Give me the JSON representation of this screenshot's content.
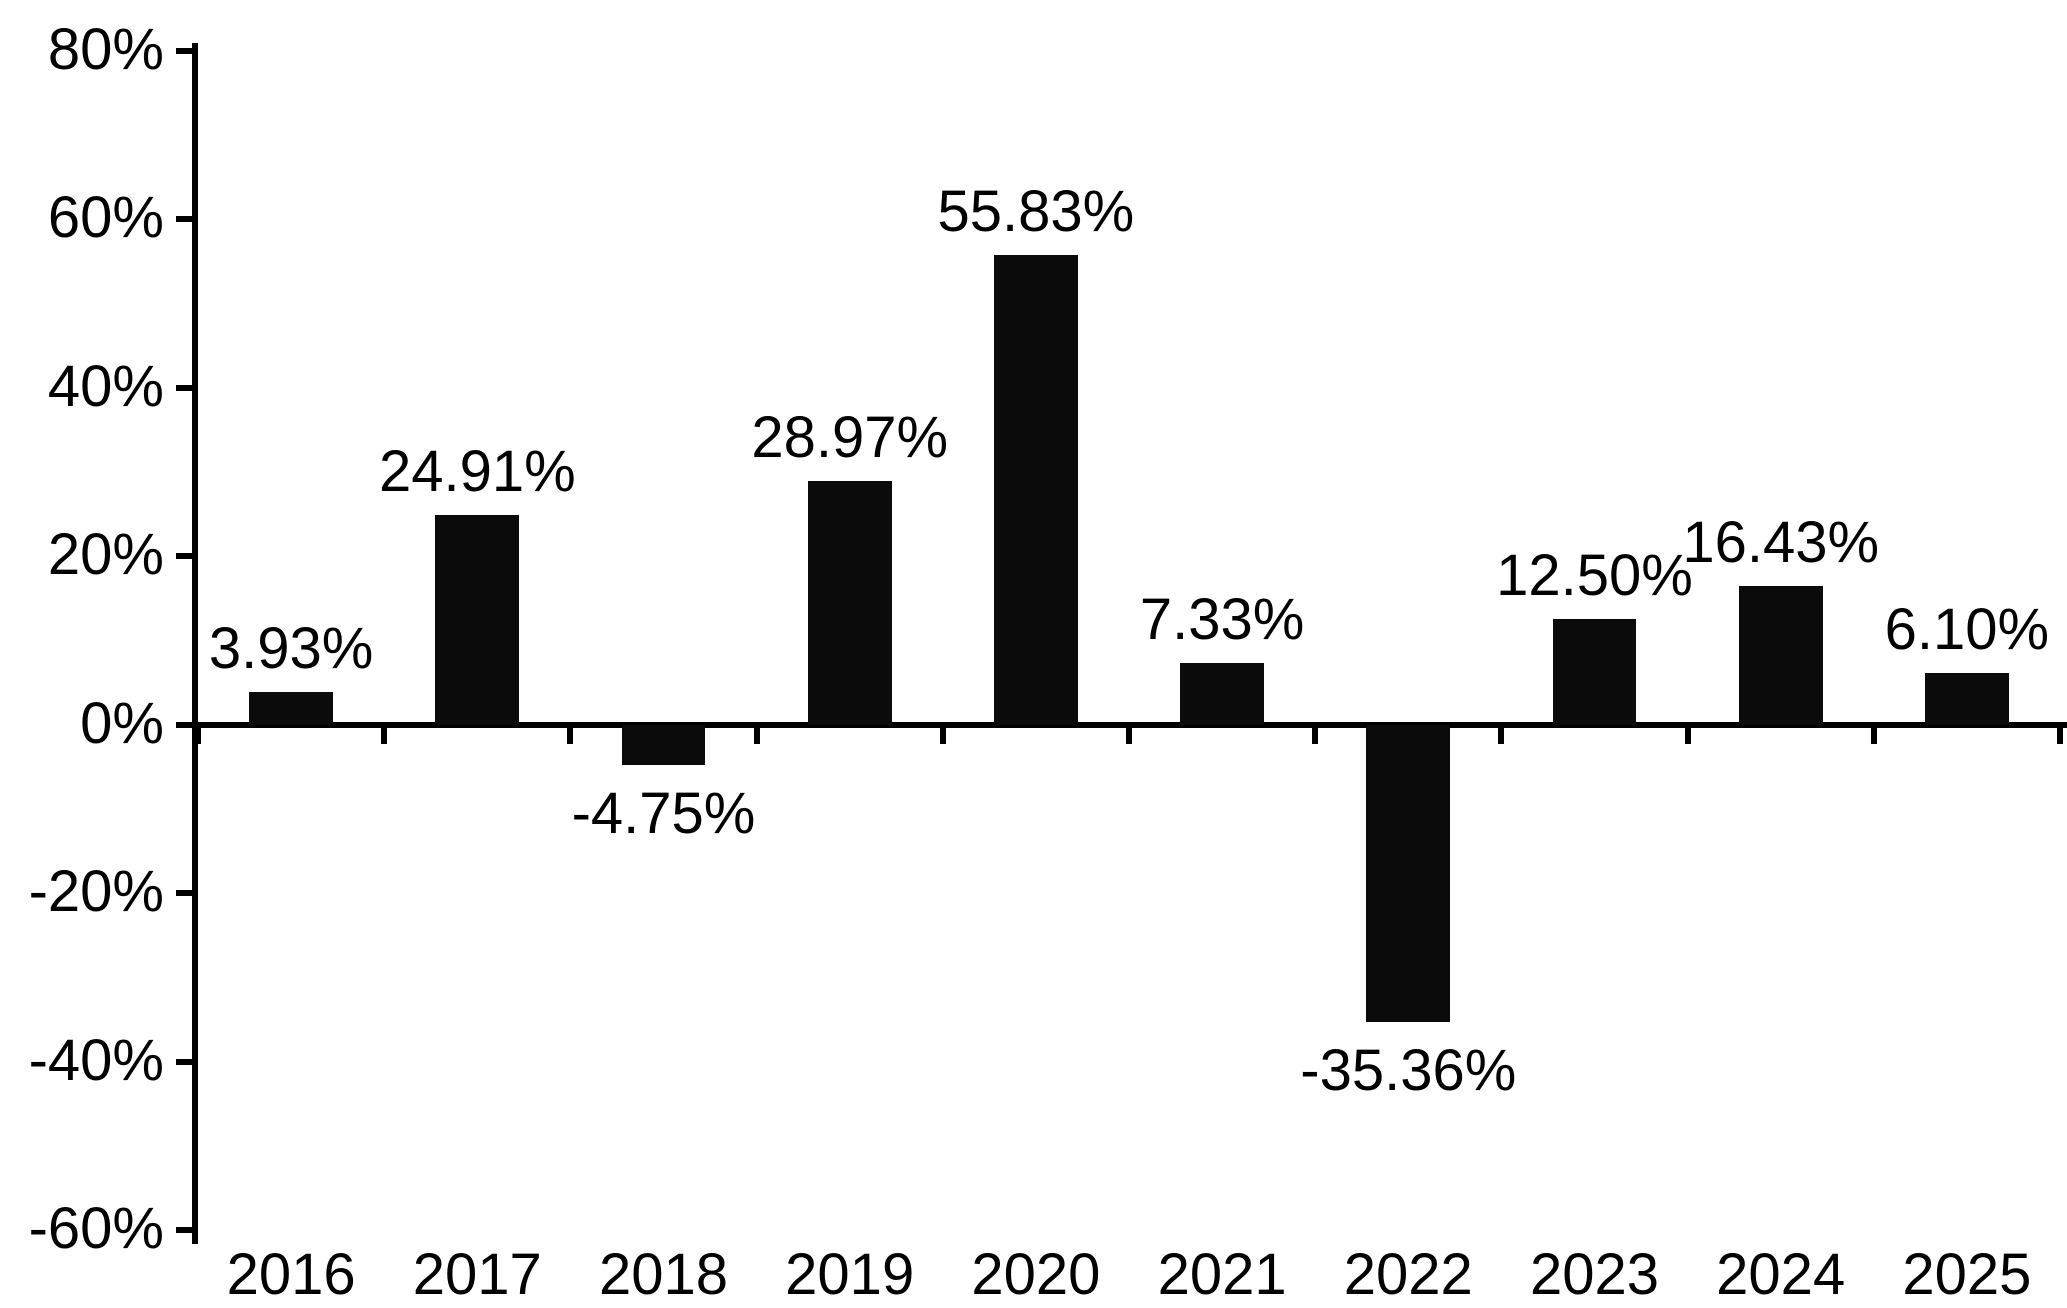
{
  "chart_data": {
    "type": "bar",
    "title": "",
    "xlabel": "",
    "ylabel": "",
    "categories": [
      "2016",
      "2017",
      "2018",
      "2019",
      "2020",
      "2021",
      "2022",
      "2023",
      "2024",
      "2025"
    ],
    "values": [
      3.93,
      24.91,
      -4.75,
      28.97,
      55.83,
      7.33,
      -35.36,
      12.5,
      16.43,
      6.1
    ],
    "value_labels": [
      "3.93%",
      "24.91%",
      "-4.75%",
      "28.97%",
      "55.83%",
      "7.33%",
      "-35.36%",
      "12.50%",
      "16.43%",
      "6.10%"
    ],
    "ylim": [
      -60,
      80
    ],
    "y_ticks": [
      80,
      60,
      40,
      20,
      0,
      -20,
      -40,
      -60
    ],
    "y_tick_labels": [
      "80%",
      "60%",
      "40%",
      "20%",
      "0%",
      "-20%",
      "-40%",
      "-60%"
    ],
    "bar_color": "#0b0b0b",
    "axis_color": "#000000",
    "text_color": "#000000",
    "background": "#ffffff",
    "grid": false,
    "legend": "none",
    "zero_baseline": true
  }
}
